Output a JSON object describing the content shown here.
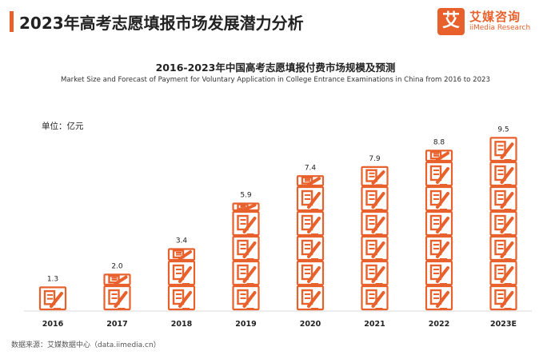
{
  "header": {
    "title": "2023年高考志愿填报市场发展潜力分析",
    "accent_color": "#e8612c"
  },
  "logo": {
    "glyph": "艾",
    "name_cn": "艾媒咨询",
    "name_en": "iiMedia Research"
  },
  "unit": "单位：亿元",
  "source": "数据来源：艾媒数据中心（data.iimedia.cn）",
  "chart_data": {
    "type": "bar",
    "title": "2016-2023年中国高考志愿填报付费市场规模及预测",
    "subtitle": "Market Size and Forecast of Payment for Voluntary Application in College Entrance Examinations in China from 2016 to 2023",
    "categories": [
      "2016",
      "2017",
      "2018",
      "2019",
      "2020",
      "2021",
      "2022",
      "2023E"
    ],
    "values": [
      1.3,
      2.0,
      3.4,
      5.9,
      7.4,
      7.9,
      8.8,
      9.5
    ],
    "value_labels": [
      "1.3",
      "2.0",
      "3.4",
      "5.9",
      "7.4",
      "7.9",
      "8.8",
      "9.5"
    ],
    "ylabel": "亿元",
    "ylim": [
      0,
      10
    ],
    "grid": false,
    "bar_color": "#e8612c",
    "bar_style": "stacked icon blocks (document with pencil)"
  }
}
